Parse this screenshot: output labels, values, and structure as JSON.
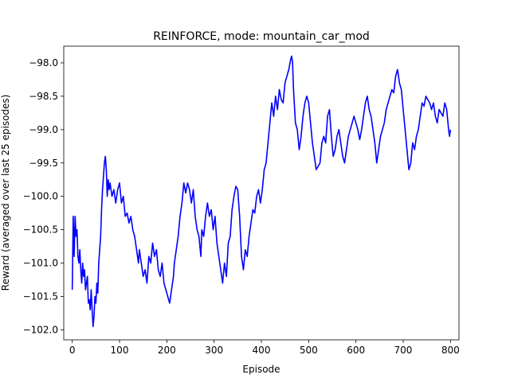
{
  "chart_data": {
    "type": "line",
    "title": "REINFORCE, mode: mountain_car_mod",
    "xlabel": "Episode",
    "ylabel": "Reward (averaged over last 25 episodes)",
    "xlim": [
      -18,
      818
    ],
    "ylim": [
      -102.15,
      -97.75
    ],
    "xticks": [
      0,
      100,
      200,
      300,
      400,
      500,
      600,
      700,
      800
    ],
    "xtick_labels": [
      "0",
      "100",
      "200",
      "300",
      "400",
      "500",
      "600",
      "700",
      "800"
    ],
    "yticks": [
      -102.0,
      -101.5,
      -101.0,
      -100.5,
      -100.0,
      -99.5,
      -99.0,
      -98.5,
      -98.0
    ],
    "ytick_labels": [
      "−102.0",
      "−101.5",
      "−101.0",
      "−100.5",
      "−100.0",
      "−99.5",
      "−99.0",
      "−98.5",
      "−98.0"
    ],
    "grid": false,
    "legend": "none",
    "series": [
      {
        "color": "#0000ff",
        "points": [
          [
            0,
            -101.4
          ],
          [
            2,
            -100.3
          ],
          [
            4,
            -100.9
          ],
          [
            6,
            -100.3
          ],
          [
            8,
            -100.6
          ],
          [
            10,
            -100.5
          ],
          [
            12,
            -100.9
          ],
          [
            14,
            -101.0
          ],
          [
            16,
            -100.8
          ],
          [
            18,
            -101.1
          ],
          [
            20,
            -101.3
          ],
          [
            22,
            -101.0
          ],
          [
            24,
            -101.2
          ],
          [
            26,
            -101.1
          ],
          [
            28,
            -101.4
          ],
          [
            30,
            -101.3
          ],
          [
            32,
            -101.2
          ],
          [
            34,
            -101.6
          ],
          [
            36,
            -101.55
          ],
          [
            38,
            -101.7
          ],
          [
            40,
            -101.4
          ],
          [
            42,
            -101.7
          ],
          [
            44,
            -101.95
          ],
          [
            46,
            -101.8
          ],
          [
            48,
            -101.5
          ],
          [
            50,
            -101.6
          ],
          [
            52,
            -101.3
          ],
          [
            54,
            -101.45
          ],
          [
            56,
            -101.0
          ],
          [
            58,
            -100.8
          ],
          [
            60,
            -100.6
          ],
          [
            62,
            -100.2
          ],
          [
            64,
            -99.9
          ],
          [
            66,
            -99.7
          ],
          [
            68,
            -99.5
          ],
          [
            70,
            -99.4
          ],
          [
            72,
            -99.6
          ],
          [
            74,
            -100.0
          ],
          [
            76,
            -99.75
          ],
          [
            78,
            -99.9
          ],
          [
            80,
            -99.8
          ],
          [
            84,
            -100.0
          ],
          [
            88,
            -99.9
          ],
          [
            92,
            -100.1
          ],
          [
            96,
            -99.9
          ],
          [
            100,
            -99.8
          ],
          [
            104,
            -100.1
          ],
          [
            108,
            -100.0
          ],
          [
            112,
            -100.3
          ],
          [
            116,
            -100.25
          ],
          [
            120,
            -100.4
          ],
          [
            124,
            -100.3
          ],
          [
            128,
            -100.5
          ],
          [
            132,
            -100.6
          ],
          [
            136,
            -100.8
          ],
          [
            140,
            -101.0
          ],
          [
            142,
            -100.8
          ],
          [
            146,
            -101.0
          ],
          [
            150,
            -101.2
          ],
          [
            154,
            -101.1
          ],
          [
            158,
            -101.3
          ],
          [
            162,
            -100.9
          ],
          [
            166,
            -101.0
          ],
          [
            170,
            -100.7
          ],
          [
            174,
            -100.9
          ],
          [
            178,
            -100.8
          ],
          [
            182,
            -101.1
          ],
          [
            186,
            -101.2
          ],
          [
            190,
            -101.0
          ],
          [
            194,
            -101.3
          ],
          [
            198,
            -101.4
          ],
          [
            202,
            -101.5
          ],
          [
            206,
            -101.6
          ],
          [
            210,
            -101.4
          ],
          [
            214,
            -101.2
          ],
          [
            216,
            -101.0
          ],
          [
            220,
            -100.8
          ],
          [
            224,
            -100.6
          ],
          [
            228,
            -100.3
          ],
          [
            232,
            -100.1
          ],
          [
            236,
            -99.8
          ],
          [
            240,
            -99.95
          ],
          [
            244,
            -99.8
          ],
          [
            248,
            -99.9
          ],
          [
            252,
            -100.1
          ],
          [
            256,
            -99.9
          ],
          [
            260,
            -100.3
          ],
          [
            264,
            -100.5
          ],
          [
            268,
            -100.6
          ],
          [
            272,
            -100.9
          ],
          [
            274,
            -100.5
          ],
          [
            278,
            -100.6
          ],
          [
            282,
            -100.3
          ],
          [
            286,
            -100.1
          ],
          [
            290,
            -100.3
          ],
          [
            294,
            -100.2
          ],
          [
            298,
            -100.5
          ],
          [
            302,
            -100.3
          ],
          [
            306,
            -100.7
          ],
          [
            310,
            -100.9
          ],
          [
            314,
            -101.1
          ],
          [
            318,
            -101.3
          ],
          [
            322,
            -101.0
          ],
          [
            326,
            -101.2
          ],
          [
            330,
            -100.7
          ],
          [
            334,
            -100.6
          ],
          [
            338,
            -100.2
          ],
          [
            342,
            -100.0
          ],
          [
            346,
            -99.85
          ],
          [
            350,
            -99.9
          ],
          [
            354,
            -100.3
          ],
          [
            358,
            -100.9
          ],
          [
            362,
            -101.1
          ],
          [
            366,
            -100.8
          ],
          [
            370,
            -100.9
          ],
          [
            374,
            -100.6
          ],
          [
            378,
            -100.4
          ],
          [
            382,
            -100.2
          ],
          [
            386,
            -100.25
          ],
          [
            390,
            -100.0
          ],
          [
            394,
            -99.9
          ],
          [
            398,
            -100.1
          ],
          [
            402,
            -99.9
          ],
          [
            406,
            -99.6
          ],
          [
            410,
            -99.5
          ],
          [
            414,
            -99.2
          ],
          [
            418,
            -98.9
          ],
          [
            422,
            -98.6
          ],
          [
            426,
            -98.8
          ],
          [
            430,
            -98.5
          ],
          [
            434,
            -98.7
          ],
          [
            438,
            -98.4
          ],
          [
            442,
            -98.55
          ],
          [
            446,
            -98.6
          ],
          [
            450,
            -98.3
          ],
          [
            454,
            -98.2
          ],
          [
            458,
            -98.1
          ],
          [
            462,
            -97.95
          ],
          [
            464,
            -97.9
          ],
          [
            466,
            -98.0
          ],
          [
            468,
            -98.4
          ],
          [
            472,
            -98.9
          ],
          [
            476,
            -99.0
          ],
          [
            480,
            -99.3
          ],
          [
            484,
            -99.1
          ],
          [
            488,
            -98.8
          ],
          [
            492,
            -98.6
          ],
          [
            496,
            -98.5
          ],
          [
            500,
            -98.6
          ],
          [
            504,
            -98.9
          ],
          [
            508,
            -99.2
          ],
          [
            512,
            -99.4
          ],
          [
            516,
            -99.6
          ],
          [
            520,
            -99.55
          ],
          [
            524,
            -99.5
          ],
          [
            528,
            -99.2
          ],
          [
            532,
            -99.1
          ],
          [
            536,
            -99.2
          ],
          [
            540,
            -98.8
          ],
          [
            544,
            -98.7
          ],
          [
            548,
            -99.1
          ],
          [
            552,
            -99.4
          ],
          [
            556,
            -99.3
          ],
          [
            560,
            -99.1
          ],
          [
            564,
            -99.0
          ],
          [
            568,
            -99.2
          ],
          [
            572,
            -99.4
          ],
          [
            576,
            -99.5
          ],
          [
            580,
            -99.3
          ],
          [
            584,
            -99.1
          ],
          [
            588,
            -99.0
          ],
          [
            592,
            -98.9
          ],
          [
            596,
            -98.8
          ],
          [
            600,
            -98.9
          ],
          [
            604,
            -99.0
          ],
          [
            608,
            -99.15
          ],
          [
            612,
            -99.0
          ],
          [
            616,
            -98.8
          ],
          [
            620,
            -98.6
          ],
          [
            624,
            -98.5
          ],
          [
            628,
            -98.7
          ],
          [
            632,
            -98.8
          ],
          [
            636,
            -99.0
          ],
          [
            640,
            -99.2
          ],
          [
            644,
            -99.5
          ],
          [
            648,
            -99.3
          ],
          [
            652,
            -99.1
          ],
          [
            656,
            -99.0
          ],
          [
            660,
            -98.9
          ],
          [
            664,
            -98.7
          ],
          [
            668,
            -98.6
          ],
          [
            672,
            -98.5
          ],
          [
            676,
            -98.4
          ],
          [
            680,
            -98.45
          ],
          [
            684,
            -98.2
          ],
          [
            688,
            -98.1
          ],
          [
            692,
            -98.3
          ],
          [
            696,
            -98.4
          ],
          [
            700,
            -98.7
          ],
          [
            704,
            -99.0
          ],
          [
            708,
            -99.3
          ],
          [
            712,
            -99.6
          ],
          [
            716,
            -99.5
          ],
          [
            720,
            -99.2
          ],
          [
            724,
            -99.3
          ],
          [
            728,
            -99.1
          ],
          [
            732,
            -99.0
          ],
          [
            736,
            -98.8
          ],
          [
            740,
            -98.6
          ],
          [
            744,
            -98.65
          ],
          [
            748,
            -98.5
          ],
          [
            752,
            -98.55
          ],
          [
            756,
            -98.6
          ],
          [
            760,
            -98.7
          ],
          [
            764,
            -98.6
          ],
          [
            768,
            -98.8
          ],
          [
            772,
            -98.9
          ],
          [
            776,
            -98.7
          ],
          [
            780,
            -98.75
          ],
          [
            784,
            -98.8
          ],
          [
            788,
            -98.6
          ],
          [
            792,
            -98.7
          ],
          [
            796,
            -99.0
          ],
          [
            798,
            -99.1
          ],
          [
            800,
            -99.0
          ]
        ]
      }
    ]
  }
}
